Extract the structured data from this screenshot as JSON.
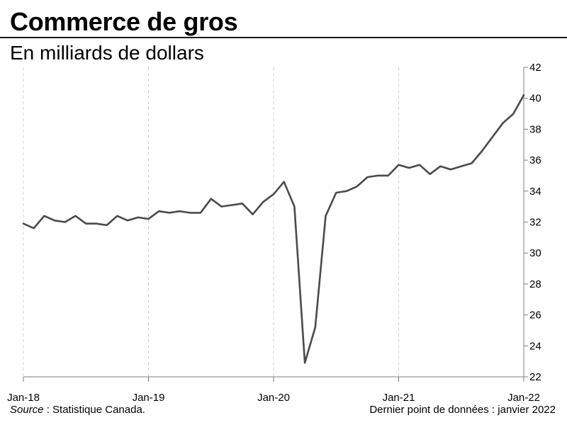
{
  "title": "Commerce de gros",
  "subtitle": "En milliards  de dollars",
  "footer": {
    "source_label": "Source",
    "source_text": " : Statistique Canada.",
    "last_point": "Dernier point de données : janvier 2022"
  },
  "colors": {
    "line": "#4a4a4a",
    "axis": "#7f7f7f",
    "grid": "#d0d0d0",
    "rule": "#1a1a1a"
  },
  "chart_data": {
    "type": "line",
    "x_start": "2018-01",
    "x_end": "2022-01",
    "x_tick_labels": [
      "Jan-18",
      "Jan-19",
      "Jan-20",
      "Jan-21",
      "Jan-22"
    ],
    "ylim": [
      22,
      42
    ],
    "y_ticks": [
      22,
      24,
      26,
      28,
      30,
      32,
      34,
      36,
      38,
      40,
      42
    ],
    "y_axis_side": "right",
    "grid": "vertical-dashed",
    "series": [
      {
        "x": [
          "2018-01",
          "2018-02",
          "2018-03",
          "2018-04",
          "2018-05",
          "2018-06",
          "2018-07",
          "2018-08",
          "2018-09",
          "2018-10",
          "2018-11",
          "2018-12",
          "2019-01",
          "2019-02",
          "2019-03",
          "2019-04",
          "2019-05",
          "2019-06",
          "2019-07",
          "2019-08",
          "2019-09",
          "2019-10",
          "2019-11",
          "2019-12",
          "2020-01",
          "2020-02",
          "2020-03",
          "2020-04",
          "2020-05",
          "2020-06",
          "2020-07",
          "2020-08",
          "2020-09",
          "2020-10",
          "2020-11",
          "2020-12",
          "2021-01",
          "2021-02",
          "2021-03",
          "2021-04",
          "2021-05",
          "2021-06",
          "2021-07",
          "2021-08",
          "2021-09",
          "2021-10",
          "2021-11",
          "2021-12",
          "2022-01"
        ],
        "values": [
          31.9,
          31.6,
          32.4,
          32.1,
          32.0,
          32.4,
          31.9,
          31.9,
          31.8,
          32.4,
          32.1,
          32.3,
          32.2,
          32.7,
          32.6,
          32.7,
          32.6,
          32.6,
          33.5,
          33.0,
          33.1,
          33.2,
          32.5,
          33.3,
          33.8,
          34.6,
          33.0,
          22.9,
          25.2,
          32.4,
          33.9,
          34.0,
          34.3,
          34.9,
          35.0,
          35.0,
          35.7,
          35.5,
          35.7,
          35.1,
          35.6,
          35.4,
          35.6,
          35.8,
          36.6,
          37.5,
          38.4,
          39.0,
          40.2
        ]
      }
    ]
  }
}
